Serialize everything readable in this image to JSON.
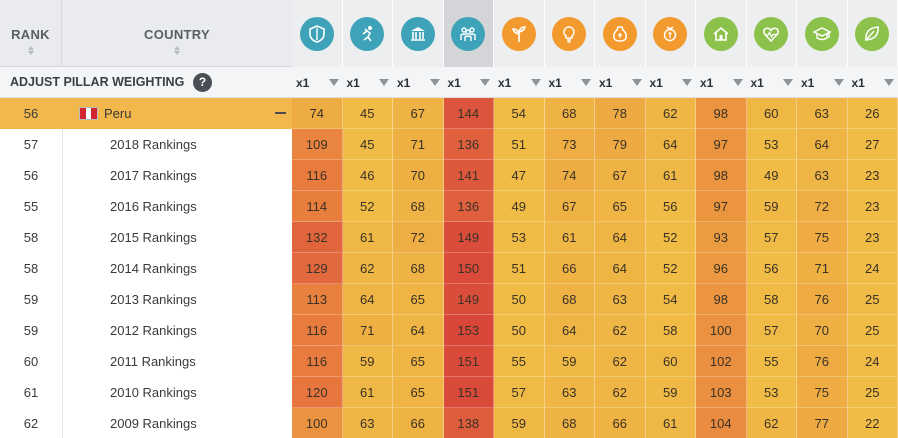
{
  "header": {
    "rank_label": "RANK",
    "country_label": "COUNTRY",
    "weighting_label": "ADJUST PILLAR WEIGHTING",
    "help_label": "?"
  },
  "pillars": [
    {
      "icon": "shield-icon",
      "color": "#3ea3b8",
      "weight": "x1"
    },
    {
      "icon": "running-person-icon",
      "color": "#3ea3b8",
      "weight": "x1"
    },
    {
      "icon": "government-building-icon",
      "color": "#3ea3b8",
      "weight": "x1"
    },
    {
      "icon": "people-group-icon",
      "color": "#3ea3b8",
      "weight": "x1",
      "active": true
    },
    {
      "icon": "plant-sprout-icon",
      "color": "#f29a2e",
      "weight": "x1"
    },
    {
      "icon": "lightbulb-icon",
      "color": "#f29a2e",
      "weight": "x1"
    },
    {
      "icon": "money-bag-icon",
      "color": "#f29a2e",
      "weight": "x1"
    },
    {
      "icon": "coin-hand-icon",
      "color": "#f29a2e",
      "weight": "x1"
    },
    {
      "icon": "house-icon",
      "color": "#8cc14c",
      "weight": "x1"
    },
    {
      "icon": "heart-pulse-icon",
      "color": "#8cc14c",
      "weight": "x1"
    },
    {
      "icon": "graduation-cap-icon",
      "color": "#8cc14c",
      "weight": "x1"
    },
    {
      "icon": "leaf-icon",
      "color": "#8cc14c",
      "weight": "x1"
    }
  ],
  "rows": [
    {
      "rank": "56",
      "name": "Peru",
      "main": true,
      "values": [
        "74",
        "45",
        "67",
        "144",
        "54",
        "68",
        "78",
        "62",
        "98",
        "60",
        "63",
        "26"
      ]
    },
    {
      "rank": "57",
      "name": "2018 Rankings",
      "values": [
        "109",
        "45",
        "71",
        "136",
        "51",
        "73",
        "79",
        "64",
        "97",
        "53",
        "64",
        "27"
      ]
    },
    {
      "rank": "56",
      "name": "2017 Rankings",
      "values": [
        "116",
        "46",
        "70",
        "141",
        "47",
        "74",
        "67",
        "61",
        "98",
        "49",
        "63",
        "23"
      ]
    },
    {
      "rank": "55",
      "name": "2016 Rankings",
      "values": [
        "114",
        "52",
        "68",
        "136",
        "49",
        "67",
        "65",
        "56",
        "97",
        "59",
        "72",
        "23"
      ]
    },
    {
      "rank": "58",
      "name": "2015 Rankings",
      "values": [
        "132",
        "61",
        "72",
        "149",
        "53",
        "61",
        "64",
        "52",
        "93",
        "57",
        "75",
        "23"
      ]
    },
    {
      "rank": "58",
      "name": "2014 Rankings",
      "values": [
        "129",
        "62",
        "68",
        "150",
        "51",
        "66",
        "64",
        "52",
        "96",
        "56",
        "71",
        "24"
      ]
    },
    {
      "rank": "59",
      "name": "2013 Rankings",
      "values": [
        "113",
        "64",
        "65",
        "149",
        "50",
        "68",
        "63",
        "54",
        "98",
        "58",
        "76",
        "25"
      ]
    },
    {
      "rank": "59",
      "name": "2012 Rankings",
      "values": [
        "116",
        "71",
        "64",
        "153",
        "50",
        "64",
        "62",
        "58",
        "100",
        "57",
        "70",
        "25"
      ]
    },
    {
      "rank": "60",
      "name": "2011 Rankings",
      "values": [
        "116",
        "59",
        "65",
        "151",
        "55",
        "59",
        "62",
        "60",
        "102",
        "55",
        "76",
        "24"
      ]
    },
    {
      "rank": "61",
      "name": "2010 Rankings",
      "values": [
        "120",
        "61",
        "65",
        "151",
        "57",
        "63",
        "62",
        "59",
        "103",
        "53",
        "75",
        "25"
      ]
    },
    {
      "rank": "62",
      "name": "2009 Rankings",
      "values": [
        "100",
        "63",
        "66",
        "138",
        "59",
        "68",
        "66",
        "61",
        "104",
        "62",
        "77",
        "22"
      ]
    }
  ],
  "colors": {
    "main_row": "#f2b84b",
    "flag_red": "#d22630",
    "flag_white": "#ffffff"
  }
}
